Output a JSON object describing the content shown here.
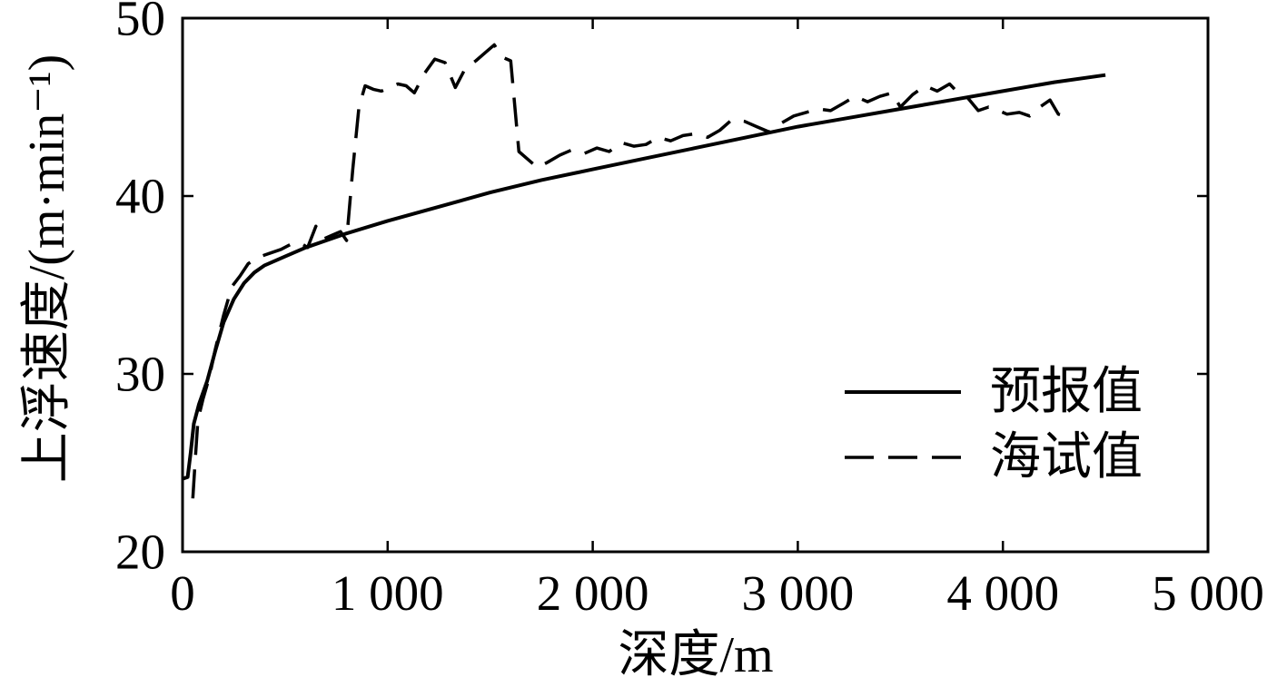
{
  "chart_data": {
    "type": "line",
    "title": "",
    "xlabel": "深度/m",
    "ylabel": "上浮速度/(m·min⁻¹)",
    "xlim": [
      0,
      5000
    ],
    "ylim": [
      20,
      50
    ],
    "xticks": [
      0,
      1000,
      2000,
      3000,
      4000,
      5000
    ],
    "xtick_labels": [
      "0",
      "1 000",
      "2 000",
      "3 000",
      "4 000",
      "5 000"
    ],
    "yticks": [
      20,
      30,
      40,
      50
    ],
    "ytick_labels": [
      "20",
      "30",
      "40",
      "50"
    ],
    "grid": false,
    "legend_position": "lower-right",
    "series": [
      {
        "name": "预报值",
        "line_style": "solid",
        "color": "#000000",
        "x": [
          0,
          25,
          40,
          55,
          80,
          120,
          160,
          200,
          250,
          300,
          350,
          400,
          500,
          600,
          700,
          800,
          1000,
          1250,
          1500,
          1750,
          2000,
          2250,
          2500,
          2750,
          3000,
          3250,
          3500,
          3750,
          4000,
          4250,
          4500
        ],
        "y": [
          24.1,
          24.2,
          25.6,
          27.2,
          28.3,
          29.6,
          31.3,
          32.9,
          34.2,
          35.1,
          35.7,
          36.1,
          36.6,
          37.1,
          37.5,
          37.9,
          38.6,
          39.4,
          40.2,
          40.9,
          41.5,
          42.1,
          42.7,
          43.3,
          43.9,
          44.4,
          44.9,
          45.4,
          45.9,
          46.4,
          46.8
        ]
      },
      {
        "name": "海试值",
        "line_style": "dashed",
        "color": "#000000",
        "x": [
          50,
          62,
          75,
          100,
          130,
          160,
          200,
          240,
          280,
          320,
          380,
          430,
          480,
          530,
          570,
          610,
          650,
          690,
          730,
          770,
          800,
          830,
          860,
          890,
          930,
          970,
          1010,
          1050,
          1090,
          1130,
          1180,
          1230,
          1280,
          1330,
          1380,
          1430,
          1480,
          1520,
          1560,
          1600,
          1640,
          1690,
          1730,
          1780,
          1840,
          1900,
          1960,
          2020,
          2080,
          2140,
          2200,
          2260,
          2320,
          2380,
          2440,
          2500,
          2560,
          2620,
          2680,
          2740,
          2800,
          2860,
          2920,
          2980,
          3040,
          3100,
          3160,
          3220,
          3280,
          3340,
          3400,
          3460,
          3500,
          3560,
          3620,
          3680,
          3740,
          3790,
          3830,
          3880,
          3930,
          3980,
          4020,
          4080,
          4130,
          4180,
          4230,
          4270,
          4300
        ],
        "y": [
          23.0,
          25.2,
          27.4,
          28.6,
          29.8,
          31.4,
          33.3,
          34.9,
          35.5,
          36.2,
          36.6,
          36.8,
          37.0,
          37.3,
          37.4,
          37.1,
          38.3,
          37.6,
          37.8,
          38.0,
          37.5,
          41.5,
          45.0,
          46.2,
          46.0,
          45.9,
          46.1,
          46.3,
          46.2,
          45.8,
          46.9,
          47.7,
          47.5,
          46.1,
          47.2,
          47.6,
          48.1,
          48.5,
          47.8,
          47.6,
          42.5,
          42.0,
          41.6,
          41.9,
          42.3,
          42.6,
          42.4,
          42.7,
          42.5,
          43.0,
          42.8,
          42.9,
          43.3,
          43.1,
          43.4,
          43.5,
          43.3,
          43.7,
          44.3,
          44.2,
          43.9,
          43.6,
          44.1,
          44.5,
          44.7,
          44.9,
          44.8,
          45.2,
          45.6,
          45.3,
          45.6,
          45.8,
          45.0,
          45.7,
          46.2,
          45.9,
          46.3,
          45.7,
          45.5,
          44.8,
          45.0,
          44.8,
          44.6,
          44.7,
          44.5,
          45.0,
          45.4,
          44.6,
          44.5
        ]
      }
    ]
  }
}
